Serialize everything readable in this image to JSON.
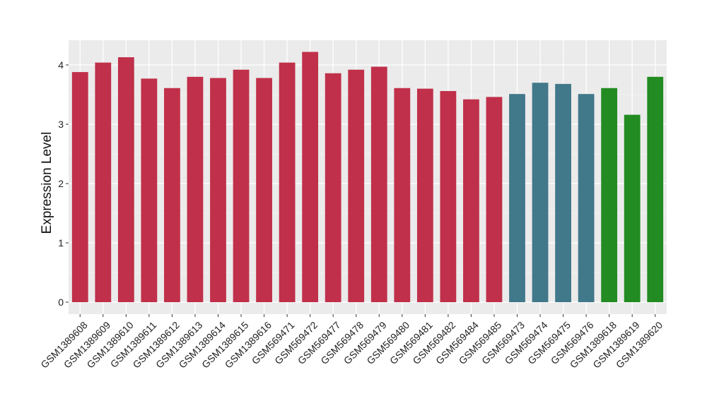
{
  "chart_data": {
    "type": "bar",
    "title": "",
    "xlabel": "",
    "ylabel": "Expression Level",
    "ylim": [
      0,
      4.4
    ],
    "yticks": [
      0,
      1,
      2,
      3,
      4
    ],
    "grid": true,
    "categories": [
      "GSM1389608",
      "GSM1389609",
      "GSM1389610",
      "GSM1389611",
      "GSM1389612",
      "GSM1389613",
      "GSM1389614",
      "GSM1389615",
      "GSM1389616",
      "GSM569471",
      "GSM569472",
      "GSM569477",
      "GSM569478",
      "GSM569479",
      "GSM569480",
      "GSM569481",
      "GSM569482",
      "GSM569484",
      "GSM569485",
      "GSM569473",
      "GSM569474",
      "GSM569475",
      "GSM569476",
      "GSM1389618",
      "GSM1389619",
      "GSM1389620"
    ],
    "values": [
      3.88,
      4.04,
      4.13,
      3.77,
      3.61,
      3.8,
      3.78,
      3.92,
      3.78,
      4.04,
      4.22,
      3.86,
      3.92,
      3.97,
      3.61,
      3.6,
      3.56,
      3.42,
      3.46,
      3.51,
      3.7,
      3.68,
      3.51,
      3.61,
      3.16,
      3.8
    ],
    "bar_colors": [
      "#C0304A",
      "#C0304A",
      "#C0304A",
      "#C0304A",
      "#C0304A",
      "#C0304A",
      "#C0304A",
      "#C0304A",
      "#C0304A",
      "#C0304A",
      "#C0304A",
      "#C0304A",
      "#C0304A",
      "#C0304A",
      "#C0304A",
      "#C0304A",
      "#C0304A",
      "#C0304A",
      "#C0304A",
      "#41788A",
      "#41788A",
      "#41788A",
      "#41788A",
      "#228B22",
      "#228B22",
      "#228B22"
    ],
    "panel_background": "#EBEBEB",
    "gridline_color": "#FFFFFF"
  }
}
